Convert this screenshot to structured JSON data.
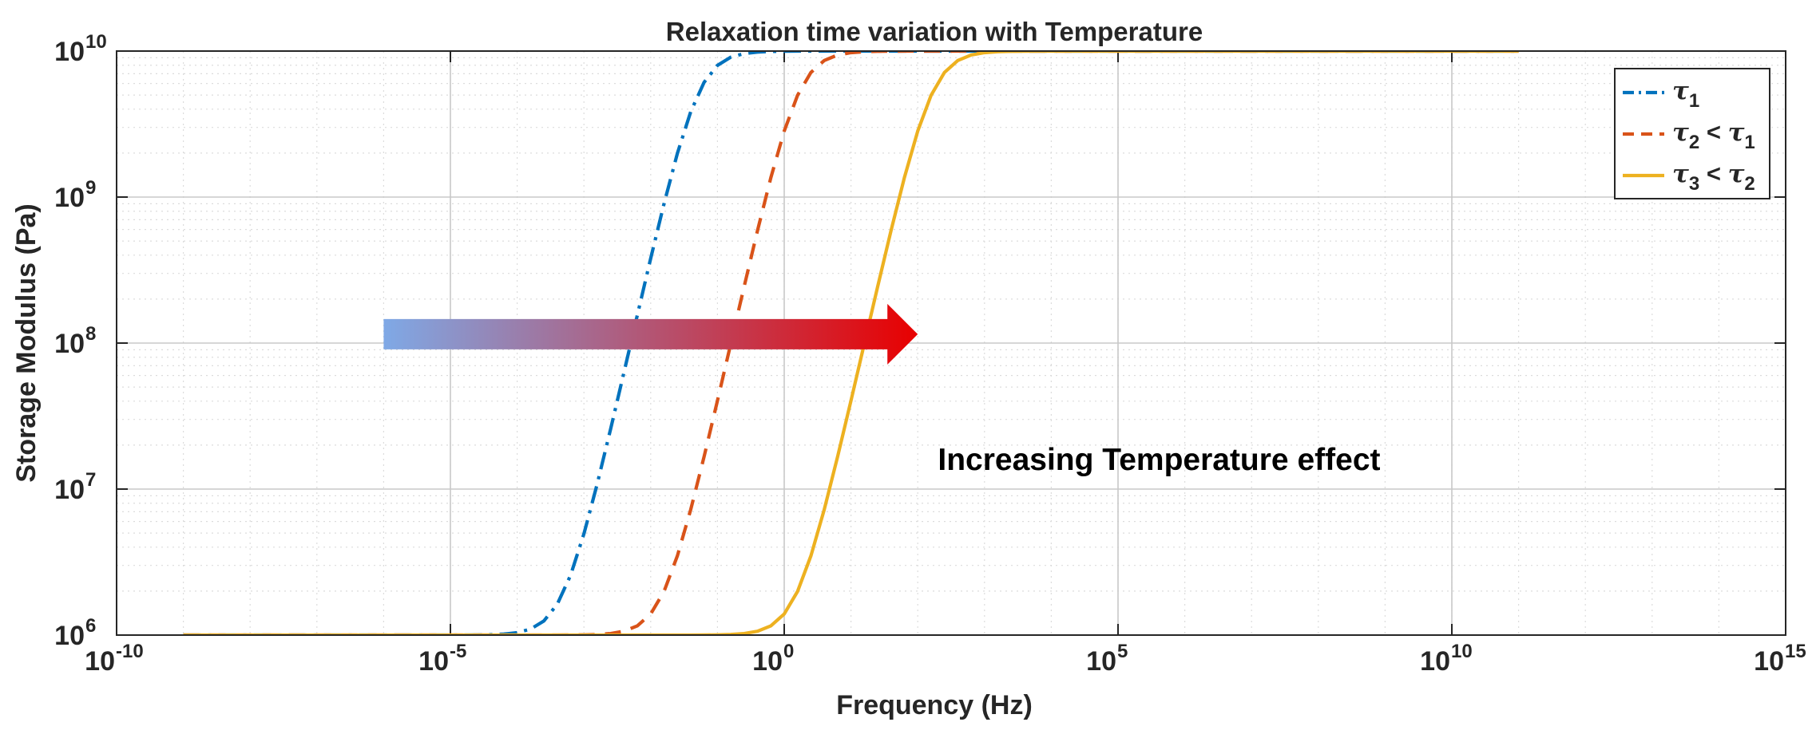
{
  "chart_data": {
    "type": "line",
    "title": "Relaxation time variation with Temperature",
    "xlabel": "Frequency (Hz)",
    "ylabel": "Storage Modulus (Pa)",
    "xscale": "log",
    "yscale": "log",
    "xlim": [
      1e-10,
      1000000000000000.0
    ],
    "ylim": [
      1000000.0,
      10000000000.0
    ],
    "grid": true,
    "minor_grid": true,
    "x_ticks": [
      {
        "value": 1e-10,
        "base": "10",
        "exp": "-10"
      },
      {
        "value": 1e-05,
        "base": "10",
        "exp": "-5"
      },
      {
        "value": 1,
        "base": "10",
        "exp": "0"
      },
      {
        "value": 100000.0,
        "base": "10",
        "exp": "5"
      },
      {
        "value": 10000000000.0,
        "base": "10",
        "exp": "10"
      },
      {
        "value": 1000000000000000.0,
        "base": "10",
        "exp": "15"
      }
    ],
    "y_ticks": [
      {
        "value": 1000000.0,
        "base": "10",
        "exp": "6"
      },
      {
        "value": 10000000.0,
        "base": "10",
        "exp": "7"
      },
      {
        "value": 100000000.0,
        "base": "10",
        "exp": "8"
      },
      {
        "value": 1000000000.0,
        "base": "10",
        "exp": "9"
      },
      {
        "value": 10000000000.0,
        "base": "10",
        "exp": "10"
      }
    ],
    "legend_position": "top-right",
    "model": {
      "E_min": 1000000.0,
      "E_max": 10000000000.0,
      "x_from": 1e-09,
      "x_to": 100000000000.0,
      "points_per_decade": 5
    },
    "series": [
      {
        "name": "τ1",
        "legend": {
          "sym": "τ",
          "sub": "1",
          "rest": "",
          "sym2": "",
          "sub2": ""
        },
        "tau": 3.16,
        "color": "#0072BD",
        "dash": "22 9 4 9"
      },
      {
        "name": "τ2 < τ1",
        "legend": {
          "sym": "τ",
          "sub": "2",
          "rest": " < ",
          "sym2": "τ",
          "sub2": "1"
        },
        "tau": 0.1,
        "color": "#D95319",
        "dash": "20 13"
      },
      {
        "name": "τ3 < τ2",
        "legend": {
          "sym": "τ",
          "sub": "3",
          "rest": " < ",
          "sym2": "τ",
          "sub2": "2"
        },
        "tau": 0.001,
        "color": "#EDB120",
        "dash": ""
      }
    ],
    "annotation": {
      "text": "Increasing Temperature effect",
      "arrow_from_x": 1e-06,
      "arrow_to_x": 100.0,
      "arrow_y": 115000000.0,
      "text_x": 200.0,
      "text_y": 13500000.0,
      "gradient_start": "#7FA9E6",
      "gradient_end": "#E80000"
    }
  }
}
